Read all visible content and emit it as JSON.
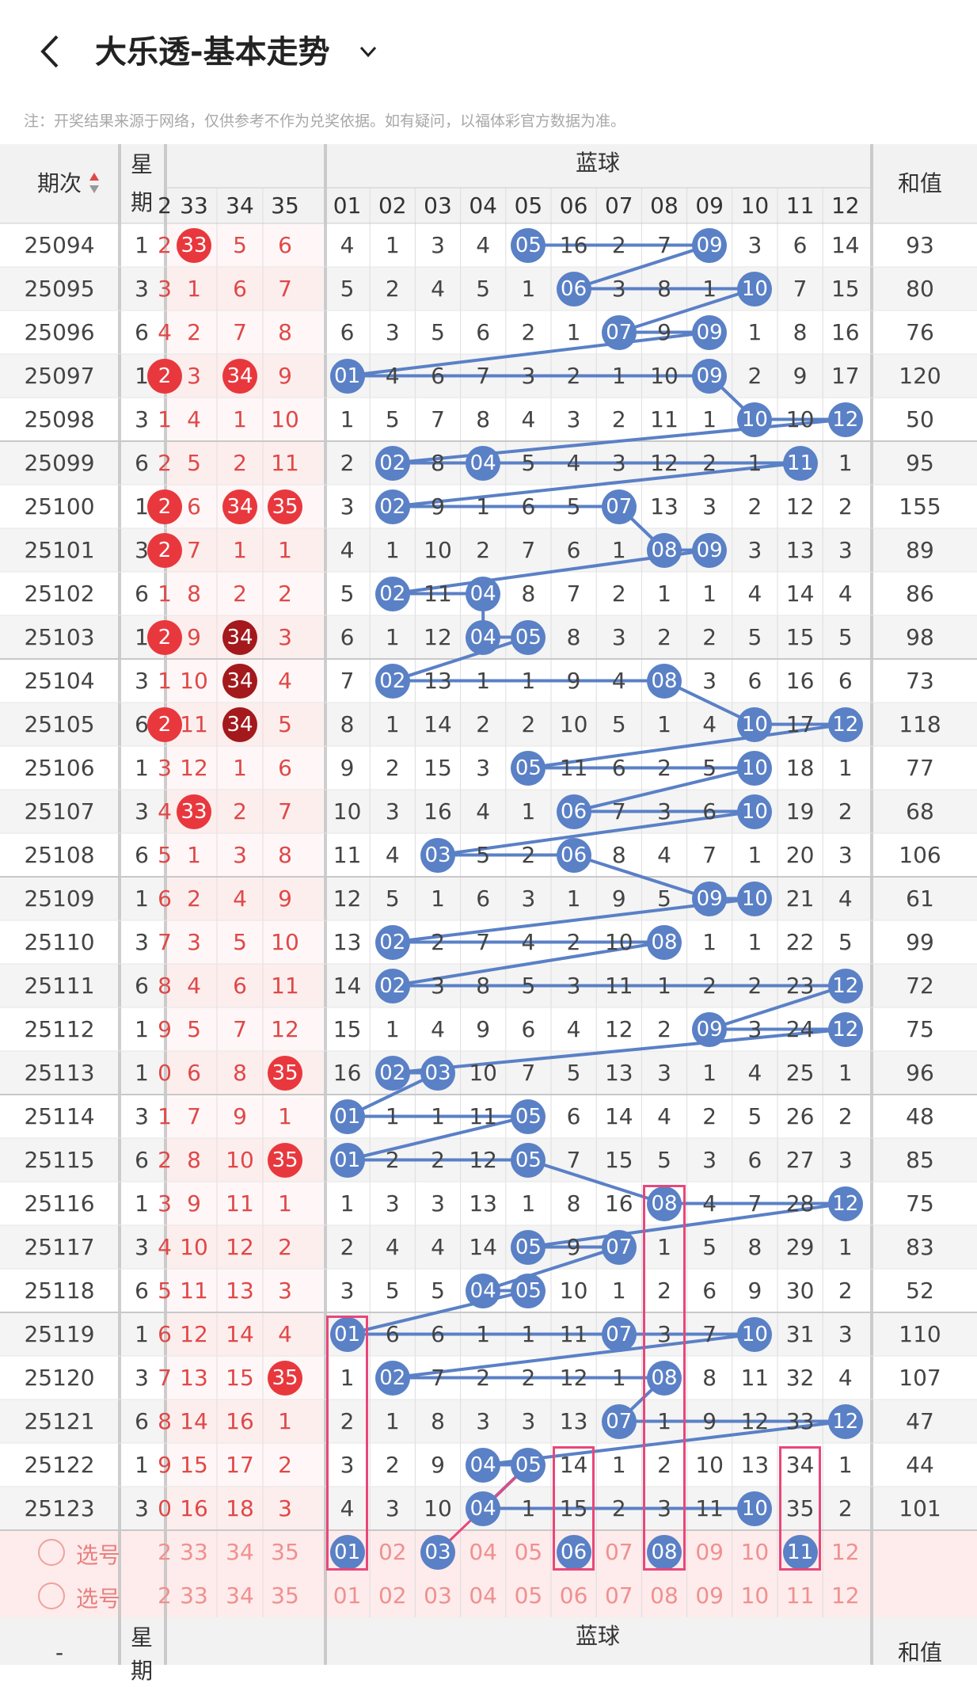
{
  "header": {
    "title": "大乐透-基本走势",
    "back_icon": "chevron-left-icon",
    "dropdown_icon": "chevron-down-icon"
  },
  "notice": "注：开奖结果来源于网络，仅供参考不作为兑奖依据。如有疑问，以福体彩官方数据为准。",
  "columns": {
    "period": "期次",
    "week_top": "星",
    "week_bottom": "期",
    "blue_group": "蓝球",
    "sum": "和值",
    "red_headers": [
      "2",
      "33",
      "34",
      "35"
    ],
    "blue_headers": [
      "01",
      "02",
      "03",
      "04",
      "05",
      "06",
      "07",
      "08",
      "09",
      "10",
      "11",
      "12"
    ]
  },
  "rows": [
    {
      "period": "25094",
      "week": "1",
      "red": [
        "2",
        "33",
        "5",
        "6"
      ],
      "blue": [
        "4",
        "1",
        "3",
        "4",
        "05",
        "16",
        "2",
        "7",
        "09",
        "3",
        "6",
        "14"
      ],
      "sum": "93"
    },
    {
      "period": "25095",
      "week": "3",
      "red": [
        "3",
        "1",
        "6",
        "7"
      ],
      "blue": [
        "5",
        "2",
        "4",
        "5",
        "1",
        "06",
        "3",
        "8",
        "1",
        "10",
        "7",
        "15"
      ],
      "sum": "80"
    },
    {
      "period": "25096",
      "week": "6",
      "red": [
        "4",
        "2",
        "7",
        "8"
      ],
      "blue": [
        "6",
        "3",
        "5",
        "6",
        "2",
        "1",
        "07",
        "9",
        "09",
        "1",
        "8",
        "16"
      ],
      "sum": "76"
    },
    {
      "period": "25097",
      "week": "1",
      "red": [
        "2",
        "3",
        "34",
        "9"
      ],
      "blue": [
        "01",
        "4",
        "6",
        "7",
        "3",
        "2",
        "1",
        "10",
        "09",
        "2",
        "9",
        "17"
      ],
      "sum": "120"
    },
    {
      "period": "25098",
      "week": "3",
      "red": [
        "1",
        "4",
        "1",
        "10"
      ],
      "blue": [
        "1",
        "5",
        "7",
        "8",
        "4",
        "3",
        "2",
        "11",
        "1",
        "10",
        "10",
        "12"
      ],
      "sum": "50"
    },
    {
      "period": "25099",
      "week": "6",
      "red": [
        "2",
        "5",
        "2",
        "11"
      ],
      "blue": [
        "2",
        "02",
        "8",
        "04",
        "5",
        "4",
        "3",
        "12",
        "2",
        "1",
        "11",
        "1"
      ],
      "sum": "95"
    },
    {
      "period": "25100",
      "week": "1",
      "red": [
        "2",
        "6",
        "34",
        "35"
      ],
      "blue": [
        "3",
        "02",
        "9",
        "1",
        "6",
        "5",
        "07",
        "13",
        "3",
        "2",
        "12",
        "2"
      ],
      "sum": "155"
    },
    {
      "period": "25101",
      "week": "3",
      "red": [
        "2",
        "7",
        "1",
        "1"
      ],
      "blue": [
        "4",
        "1",
        "10",
        "2",
        "7",
        "6",
        "1",
        "08",
        "09",
        "3",
        "13",
        "3"
      ],
      "sum": "89"
    },
    {
      "period": "25102",
      "week": "6",
      "red": [
        "1",
        "8",
        "2",
        "2"
      ],
      "blue": [
        "5",
        "02",
        "11",
        "04",
        "8",
        "7",
        "2",
        "1",
        "1",
        "4",
        "14",
        "4"
      ],
      "sum": "86"
    },
    {
      "period": "25103",
      "week": "1",
      "red": [
        "2",
        "9",
        "34",
        "3"
      ],
      "blue": [
        "6",
        "1",
        "12",
        "04",
        "05",
        "8",
        "3",
        "2",
        "2",
        "5",
        "15",
        "5"
      ],
      "sum": "98"
    },
    {
      "period": "25104",
      "week": "3",
      "red": [
        "1",
        "10",
        "34",
        "4"
      ],
      "blue": [
        "7",
        "02",
        "13",
        "1",
        "1",
        "9",
        "4",
        "08",
        "3",
        "6",
        "16",
        "6"
      ],
      "sum": "73"
    },
    {
      "period": "25105",
      "week": "6",
      "red": [
        "2",
        "11",
        "34",
        "5"
      ],
      "blue": [
        "8",
        "1",
        "14",
        "2",
        "2",
        "10",
        "5",
        "1",
        "4",
        "10",
        "17",
        "12"
      ],
      "sum": "118"
    },
    {
      "period": "25106",
      "week": "1",
      "red": [
        "3",
        "12",
        "1",
        "6"
      ],
      "blue": [
        "9",
        "2",
        "15",
        "3",
        "05",
        "11",
        "6",
        "2",
        "5",
        "10",
        "18",
        "1"
      ],
      "sum": "77"
    },
    {
      "period": "25107",
      "week": "3",
      "red": [
        "4",
        "33",
        "2",
        "7"
      ],
      "blue": [
        "10",
        "3",
        "16",
        "4",
        "1",
        "06",
        "7",
        "3",
        "6",
        "10",
        "19",
        "2"
      ],
      "sum": "68"
    },
    {
      "period": "25108",
      "week": "6",
      "red": [
        "5",
        "1",
        "3",
        "8"
      ],
      "blue": [
        "11",
        "4",
        "03",
        "5",
        "2",
        "06",
        "8",
        "4",
        "7",
        "1",
        "20",
        "3"
      ],
      "sum": "106"
    },
    {
      "period": "25109",
      "week": "1",
      "red": [
        "6",
        "2",
        "4",
        "9"
      ],
      "blue": [
        "12",
        "5",
        "1",
        "6",
        "3",
        "1",
        "9",
        "5",
        "09",
        "10",
        "21",
        "4"
      ],
      "sum": "61"
    },
    {
      "period": "25110",
      "week": "3",
      "red": [
        "7",
        "3",
        "5",
        "10"
      ],
      "blue": [
        "13",
        "02",
        "2",
        "7",
        "4",
        "2",
        "10",
        "08",
        "1",
        "1",
        "22",
        "5"
      ],
      "sum": "99"
    },
    {
      "period": "25111",
      "week": "6",
      "red": [
        "8",
        "4",
        "6",
        "11"
      ],
      "blue": [
        "14",
        "02",
        "3",
        "8",
        "5",
        "3",
        "11",
        "1",
        "2",
        "2",
        "23",
        "12"
      ],
      "sum": "72"
    },
    {
      "period": "25112",
      "week": "1",
      "red": [
        "9",
        "5",
        "7",
        "12"
      ],
      "blue": [
        "15",
        "1",
        "4",
        "9",
        "6",
        "4",
        "12",
        "2",
        "09",
        "3",
        "24",
        "12"
      ],
      "sum": "75"
    },
    {
      "period": "25113",
      "week": "1",
      "red": [
        "0",
        "6",
        "8",
        "35"
      ],
      "blue": [
        "16",
        "02",
        "03",
        "10",
        "7",
        "5",
        "13",
        "3",
        "1",
        "4",
        "25",
        "1"
      ],
      "sum": "96"
    },
    {
      "period": "25114",
      "week": "3",
      "red": [
        "1",
        "7",
        "9",
        "1"
      ],
      "blue": [
        "01",
        "1",
        "1",
        "11",
        "05",
        "6",
        "14",
        "4",
        "2",
        "5",
        "26",
        "2"
      ],
      "sum": "48"
    },
    {
      "period": "25115",
      "week": "6",
      "red": [
        "2",
        "8",
        "10",
        "35"
      ],
      "blue": [
        "01",
        "2",
        "2",
        "12",
        "05",
        "7",
        "15",
        "5",
        "3",
        "6",
        "27",
        "3"
      ],
      "sum": "85"
    },
    {
      "period": "25116",
      "week": "1",
      "red": [
        "3",
        "9",
        "11",
        "1"
      ],
      "blue": [
        "1",
        "3",
        "3",
        "13",
        "1",
        "8",
        "16",
        "08",
        "4",
        "7",
        "28",
        "12"
      ],
      "sum": "75"
    },
    {
      "period": "25117",
      "week": "3",
      "red": [
        "4",
        "10",
        "12",
        "2"
      ],
      "blue": [
        "2",
        "4",
        "4",
        "14",
        "05",
        "9",
        "07",
        "1",
        "5",
        "8",
        "29",
        "1"
      ],
      "sum": "83"
    },
    {
      "period": "25118",
      "week": "6",
      "red": [
        "5",
        "11",
        "13",
        "3"
      ],
      "blue": [
        "3",
        "5",
        "5",
        "04",
        "05",
        "10",
        "1",
        "2",
        "6",
        "9",
        "30",
        "2"
      ],
      "sum": "52"
    },
    {
      "period": "25119",
      "week": "1",
      "red": [
        "6",
        "12",
        "14",
        "4"
      ],
      "blue": [
        "01",
        "6",
        "6",
        "1",
        "1",
        "11",
        "07",
        "3",
        "7",
        "10",
        "31",
        "3"
      ],
      "sum": "110"
    },
    {
      "period": "25120",
      "week": "3",
      "red": [
        "7",
        "13",
        "15",
        "35"
      ],
      "blue": [
        "1",
        "02",
        "7",
        "2",
        "2",
        "12",
        "1",
        "08",
        "8",
        "11",
        "32",
        "4"
      ],
      "sum": "107"
    },
    {
      "period": "25121",
      "week": "6",
      "red": [
        "8",
        "14",
        "16",
        "1"
      ],
      "blue": [
        "2",
        "1",
        "8",
        "3",
        "3",
        "13",
        "07",
        "1",
        "9",
        "12",
        "33",
        "12"
      ],
      "sum": "47"
    },
    {
      "period": "25122",
      "week": "1",
      "red": [
        "9",
        "15",
        "17",
        "2"
      ],
      "blue": [
        "3",
        "2",
        "9",
        "04",
        "05",
        "14",
        "1",
        "2",
        "10",
        "13",
        "34",
        "1"
      ],
      "sum": "44"
    },
    {
      "period": "25123",
      "week": "3",
      "red": [
        "0",
        "16",
        "18",
        "3"
      ],
      "blue": [
        "4",
        "3",
        "10",
        "04",
        "1",
        "15",
        "2",
        "3",
        "11",
        "10",
        "35",
        "2"
      ],
      "sum": "101"
    }
  ],
  "red_hits": {
    "bright": [
      [
        0,
        1
      ],
      [
        3,
        0
      ],
      [
        3,
        2
      ],
      [
        6,
        0
      ],
      [
        6,
        2
      ],
      [
        6,
        3
      ],
      [
        7,
        0
      ],
      [
        9,
        0
      ],
      [
        11,
        0
      ],
      [
        13,
        1
      ],
      [
        19,
        3
      ],
      [
        21,
        3
      ],
      [
        26,
        3
      ]
    ],
    "dark": [
      [
        9,
        2
      ],
      [
        10,
        2
      ],
      [
        11,
        2
      ]
    ]
  },
  "select_rows": [
    {
      "label": "选号",
      "red": [
        "2",
        "33",
        "34",
        "35"
      ],
      "blue": [
        "01",
        "02",
        "03",
        "04",
        "05",
        "06",
        "07",
        "08",
        "09",
        "10",
        "11",
        "12"
      ],
      "picked": [
        0,
        2,
        5,
        7,
        10
      ]
    },
    {
      "label": "选号",
      "red": [
        "2",
        "33",
        "34",
        "35"
      ],
      "blue": [
        "01",
        "02",
        "03",
        "04",
        "05",
        "06",
        "07",
        "08",
        "09",
        "10",
        "11",
        "12"
      ],
      "picked": []
    }
  ],
  "footer_header": {
    "period": "-",
    "week_top": "星",
    "week_bottom": "期",
    "blue_group": "蓝球",
    "sum": "和值"
  },
  "colors": {
    "red_ball": "#e8383d",
    "dark_red_ball": "#a3191c",
    "blue_ball": "#5a80c6",
    "highlight_box": "#e8477a",
    "select_bg": "#fdeceb"
  }
}
